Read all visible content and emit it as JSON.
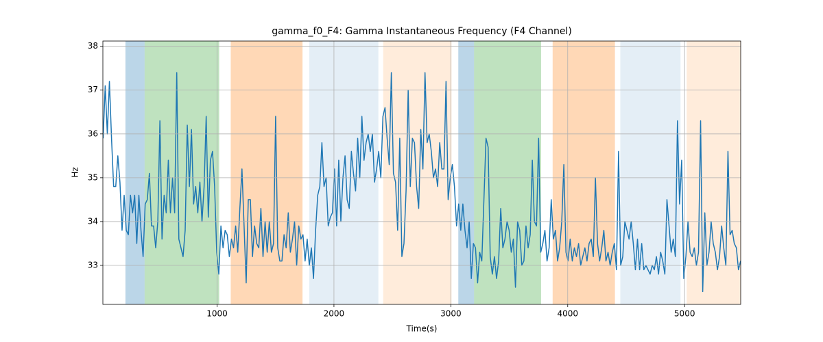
{
  "chart_data": {
    "type": "line",
    "title": "gamma_f0_F4: Gamma Instantaneous Frequency (F4 Channel)",
    "x_label": "Time(s)",
    "y_label": "Hz",
    "color": "#1f77b4",
    "grid": true,
    "xlim": [
      23,
      5480
    ],
    "ylim": [
      32.11,
      38.12
    ],
    "xticks": [
      1000,
      2000,
      3000,
      4000,
      5000
    ],
    "yticks": [
      33,
      34,
      35,
      36,
      37,
      38
    ],
    "spans": [
      {
        "start": 216,
        "end": 380,
        "color": "#1f77b4",
        "alpha": 0.3
      },
      {
        "start": 380,
        "end": 1018,
        "color": "#2ca02c",
        "alpha": 0.3
      },
      {
        "start": 1117,
        "end": 1731,
        "color": "#ff7f0e",
        "alpha": 0.3
      },
      {
        "start": 1789,
        "end": 2380,
        "color": "#1f77b4",
        "alpha": 0.12
      },
      {
        "start": 2421,
        "end": 3006,
        "color": "#ff7f0e",
        "alpha": 0.15
      },
      {
        "start": 3064,
        "end": 3199,
        "color": "#1f77b4",
        "alpha": 0.3
      },
      {
        "start": 3199,
        "end": 3772,
        "color": "#2ca02c",
        "alpha": 0.3
      },
      {
        "start": 3871,
        "end": 4404,
        "color": "#ff7f0e",
        "alpha": 0.3
      },
      {
        "start": 4450,
        "end": 4965,
        "color": "#1f77b4",
        "alpha": 0.12
      },
      {
        "start": 5018,
        "end": 5480,
        "color": "#ff7f0e",
        "alpha": 0.15
      }
    ],
    "x": [
      25,
      43,
      61,
      79,
      97,
      115,
      133,
      151,
      169,
      187,
      205,
      223,
      241,
      259,
      277,
      295,
      313,
      331,
      349,
      367,
      385,
      403,
      421,
      439,
      457,
      475,
      493,
      511,
      529,
      547,
      565,
      583,
      601,
      619,
      637,
      655,
      673,
      691,
      709,
      727,
      745,
      763,
      781,
      799,
      817,
      835,
      853,
      871,
      889,
      907,
      925,
      943,
      961,
      979,
      997,
      1015,
      1033,
      1051,
      1069,
      1087,
      1105,
      1123,
      1141,
      1159,
      1177,
      1195,
      1213,
      1231,
      1249,
      1267,
      1285,
      1303,
      1321,
      1339,
      1357,
      1375,
      1393,
      1411,
      1429,
      1447,
      1465,
      1483,
      1501,
      1519,
      1537,
      1555,
      1573,
      1591,
      1609,
      1627,
      1645,
      1663,
      1681,
      1699,
      1717,
      1735,
      1753,
      1771,
      1789,
      1807,
      1825,
      1843,
      1861,
      1879,
      1897,
      1915,
      1933,
      1951,
      1969,
      1987,
      2005,
      2023,
      2041,
      2059,
      2077,
      2095,
      2113,
      2131,
      2149,
      2167,
      2185,
      2203,
      2221,
      2239,
      2257,
      2275,
      2293,
      2311,
      2329,
      2347,
      2365,
      2383,
      2401,
      2419,
      2437,
      2455,
      2473,
      2491,
      2509,
      2527,
      2545,
      2563,
      2581,
      2599,
      2617,
      2635,
      2653,
      2671,
      2689,
      2707,
      2725,
      2743,
      2761,
      2779,
      2797,
      2815,
      2833,
      2851,
      2869,
      2887,
      2905,
      2923,
      2941,
      2959,
      2977,
      2995,
      3013,
      3031,
      3049,
      3067,
      3085,
      3103,
      3121,
      3139,
      3157,
      3175,
      3193,
      3211,
      3229,
      3247,
      3265,
      3283,
      3301,
      3319,
      3337,
      3355,
      3373,
      3391,
      3409,
      3427,
      3445,
      3463,
      3481,
      3499,
      3517,
      3535,
      3553,
      3571,
      3589,
      3607,
      3625,
      3643,
      3661,
      3679,
      3697,
      3715,
      3733,
      3751,
      3769,
      3787,
      3805,
      3823,
      3841,
      3859,
      3877,
      3895,
      3913,
      3931,
      3949,
      3967,
      3985,
      4003,
      4021,
      4039,
      4057,
      4075,
      4093,
      4111,
      4129,
      4147,
      4165,
      4183,
      4201,
      4219,
      4237,
      4255,
      4273,
      4291,
      4309,
      4327,
      4345,
      4363,
      4381,
      4399,
      4417,
      4435,
      4453,
      4471,
      4489,
      4507,
      4525,
      4543,
      4561,
      4579,
      4597,
      4615,
      4633,
      4651,
      4669,
      4687,
      4705,
      4723,
      4741,
      4759,
      4777,
      4795,
      4813,
      4831,
      4849,
      4867,
      4885,
      4903,
      4921,
      4939,
      4957,
      4975,
      4993,
      5011,
      5029,
      5047,
      5065,
      5083,
      5101,
      5119,
      5137,
      5155,
      5173,
      5191,
      5209,
      5227,
      5245,
      5263,
      5281,
      5299,
      5317,
      5335,
      5353,
      5371,
      5389,
      5407,
      5425,
      5443,
      5461,
      5479
    ],
    "values": [
      35.9,
      37.1,
      36.0,
      37.2,
      35.9,
      34.8,
      34.8,
      35.5,
      34.9,
      33.8,
      34.6,
      33.8,
      33.7,
      34.6,
      34.2,
      34.6,
      33.5,
      34.6,
      33.8,
      33.2,
      34.4,
      34.5,
      35.1,
      33.9,
      33.9,
      33.4,
      34.0,
      36.3,
      33.6,
      34.6,
      34.2,
      35.4,
      34.2,
      35.0,
      34.2,
      37.4,
      33.6,
      33.4,
      33.2,
      33.8,
      36.2,
      34.8,
      36.1,
      34.4,
      34.8,
      34.2,
      34.9,
      34.0,
      34.8,
      36.4,
      34.1,
      35.4,
      35.6,
      34.8,
      33.3,
      32.8,
      33.9,
      33.4,
      33.8,
      33.7,
      33.2,
      33.6,
      33.4,
      33.9,
      33.3,
      34.3,
      35.2,
      33.9,
      32.6,
      34.5,
      34.5,
      33.2,
      33.9,
      33.5,
      33.4,
      34.3,
      33.2,
      34.0,
      33.3,
      34.0,
      33.3,
      33.5,
      36.4,
      33.4,
      33.1,
      33.1,
      33.7,
      33.4,
      34.2,
      33.3,
      33.6,
      34.0,
      33.0,
      33.9,
      33.6,
      33.7,
      33.1,
      33.6,
      33.0,
      33.4,
      32.7,
      33.8,
      34.6,
      34.8,
      35.8,
      34.8,
      35.0,
      33.9,
      34.1,
      34.2,
      35.2,
      33.9,
      35.4,
      34.0,
      35.0,
      35.5,
      34.5,
      34.3,
      35.6,
      35.1,
      34.7,
      35.9,
      35.0,
      36.4,
      35.4,
      35.8,
      36.0,
      35.6,
      36.0,
      34.9,
      35.2,
      35.6,
      35.0,
      36.4,
      36.6,
      35.9,
      35.3,
      37.4,
      35.1,
      34.9,
      33.8,
      35.9,
      33.2,
      33.5,
      34.7,
      37.0,
      34.8,
      35.9,
      35.8,
      34.8,
      34.3,
      36.1,
      35.2,
      37.4,
      35.8,
      36.0,
      35.6,
      35.0,
      35.2,
      34.8,
      35.8,
      35.2,
      35.2,
      37.2,
      34.5,
      35.0,
      35.3,
      34.8,
      33.9,
      34.4,
      33.8,
      34.4,
      33.8,
      33.4,
      34.0,
      32.7,
      33.5,
      33.4,
      32.6,
      33.3,
      33.1,
      34.5,
      35.9,
      35.7,
      33.2,
      32.8,
      33.2,
      32.7,
      33.1,
      34.3,
      33.4,
      33.6,
      34.0,
      33.8,
      33.3,
      33.6,
      32.5,
      34.0,
      33.8,
      33.0,
      33.1,
      33.9,
      33.4,
      33.7,
      35.4,
      34.0,
      33.9,
      35.9,
      33.3,
      33.5,
      33.8,
      33.1,
      33.4,
      34.5,
      33.6,
      33.8,
      33.1,
      33.4,
      34.0,
      35.3,
      33.3,
      33.1,
      33.6,
      33.1,
      33.4,
      33.2,
      33.5,
      33.0,
      33.2,
      33.4,
      33.1,
      33.5,
      33.6,
      33.2,
      35.0,
      33.5,
      33.1,
      33.4,
      33.8,
      33.1,
      33.3,
      33.0,
      33.3,
      33.5,
      32.9,
      35.6,
      33.0,
      33.2,
      34.0,
      33.8,
      33.6,
      34.0,
      33.5,
      32.9,
      33.6,
      32.9,
      33.5,
      32.9,
      33.0,
      32.9,
      32.8,
      33.0,
      32.9,
      33.2,
      32.8,
      33.3,
      33.1,
      32.8,
      34.5,
      33.9,
      33.3,
      33.6,
      33.2,
      36.3,
      34.4,
      35.4,
      32.7,
      33.2,
      34.0,
      33.3,
      33.2,
      33.4,
      33.0,
      33.3,
      36.3,
      32.4,
      34.2,
      33.0,
      33.3,
      34.0,
      33.5,
      33.3,
      32.9,
      33.2,
      33.9,
      33.4,
      33.0,
      35.6,
      33.7,
      33.8,
      33.5,
      33.4,
      32.9,
      33.1
    ]
  }
}
